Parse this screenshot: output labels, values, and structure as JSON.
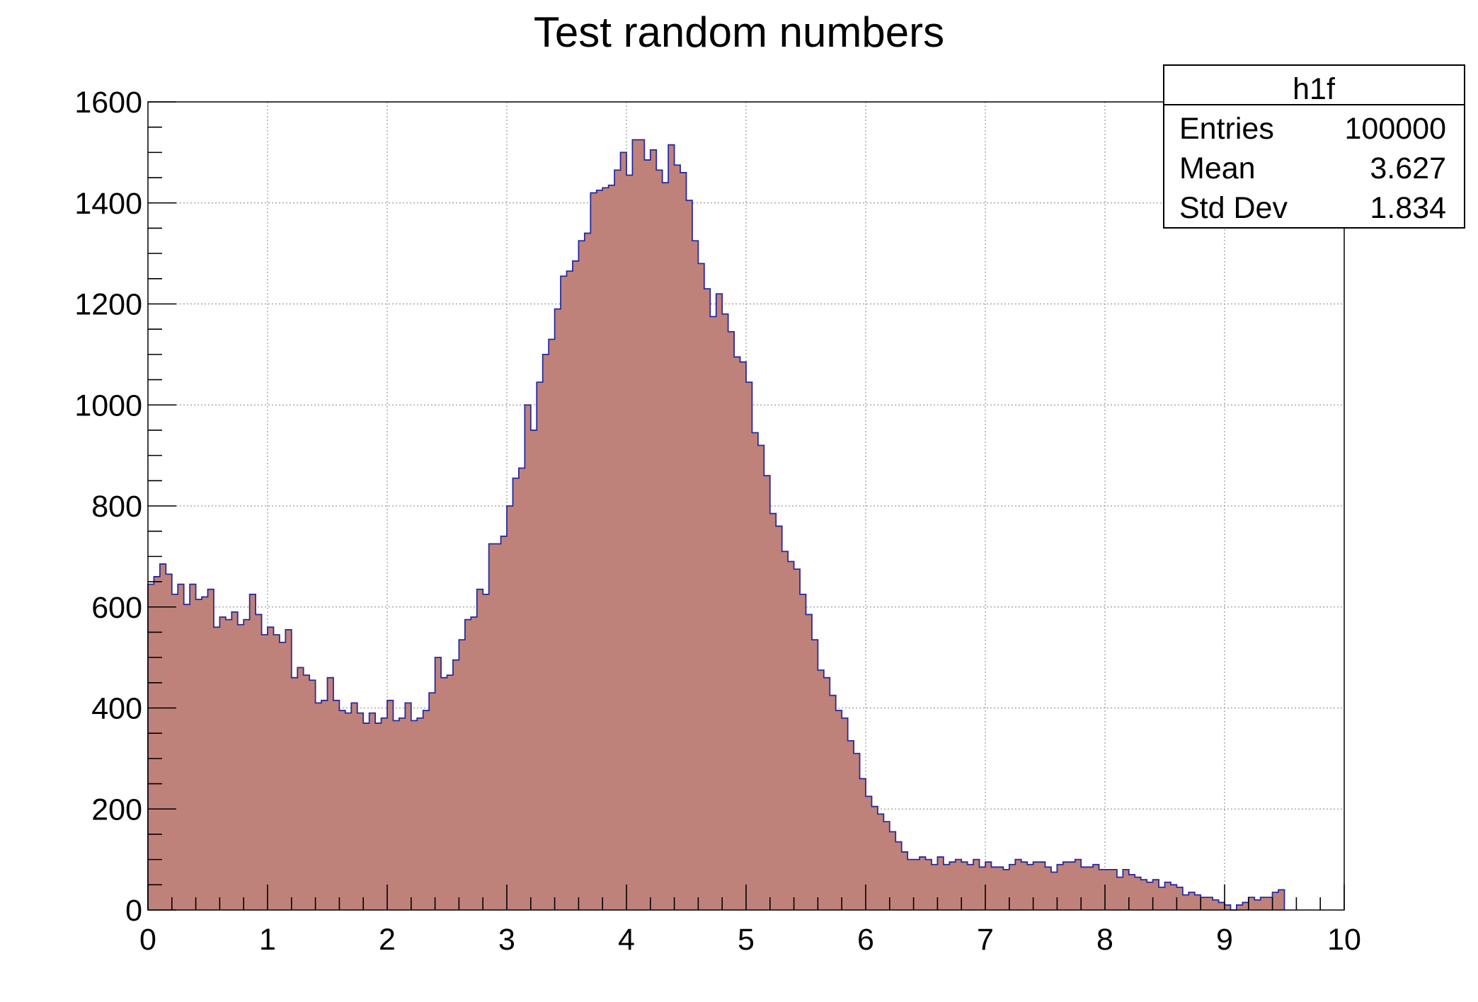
{
  "chart_data": {
    "type": "bar",
    "title": "Test random numbers",
    "xlabel": "",
    "ylabel": "",
    "xlim": [
      0,
      10
    ],
    "ylim": [
      0,
      1600
    ],
    "grid": true,
    "x_ticks": [
      "0",
      "1",
      "2",
      "3",
      "4",
      "5",
      "6",
      "7",
      "8",
      "9",
      "10"
    ],
    "y_ticks": [
      "0",
      "200",
      "400",
      "600",
      "800",
      "1000",
      "1200",
      "1400",
      "1600"
    ],
    "bin_width": 0.05,
    "values": [
      645,
      660,
      685,
      665,
      625,
      645,
      605,
      645,
      615,
      620,
      635,
      560,
      580,
      575,
      590,
      565,
      575,
      625,
      585,
      545,
      560,
      545,
      530,
      555,
      460,
      480,
      465,
      455,
      410,
      415,
      460,
      415,
      395,
      390,
      410,
      390,
      370,
      390,
      370,
      380,
      415,
      375,
      380,
      410,
      375,
      380,
      395,
      430,
      500,
      460,
      465,
      495,
      535,
      575,
      580,
      635,
      625,
      725,
      725,
      740,
      800,
      855,
      875,
      1000,
      950,
      1045,
      1100,
      1130,
      1190,
      1255,
      1265,
      1285,
      1325,
      1340,
      1420,
      1425,
      1430,
      1435,
      1465,
      1500,
      1455,
      1525,
      1525,
      1485,
      1505,
      1465,
      1440,
      1515,
      1475,
      1460,
      1405,
      1325,
      1280,
      1230,
      1175,
      1220,
      1180,
      1145,
      1095,
      1085,
      1045,
      945,
      920,
      860,
      785,
      760,
      710,
      690,
      675,
      625,
      585,
      535,
      475,
      460,
      425,
      395,
      380,
      335,
      310,
      260,
      225,
      205,
      190,
      175,
      155,
      135,
      115,
      100,
      100,
      105,
      100,
      90,
      105,
      90,
      95,
      100,
      95,
      90,
      100,
      85,
      95,
      85,
      85,
      80,
      90,
      100,
      95,
      90,
      95,
      95,
      85,
      75,
      90,
      95,
      95,
      100,
      85,
      85,
      90,
      80,
      80,
      80,
      65,
      80,
      70,
      65,
      60,
      55,
      60,
      45,
      55,
      50,
      45,
      30,
      35,
      30,
      25,
      25,
      20,
      15,
      10,
      0,
      10,
      15,
      25,
      20,
      25,
      25,
      35,
      40
    ],
    "legend": "top-right",
    "stats_box": {
      "name": "h1f",
      "rows": [
        {
          "label": "Entries",
          "value": "100000"
        },
        {
          "label": "Mean",
          "value": "3.627"
        },
        {
          "label": "Std Dev",
          "value": "1.834"
        }
      ]
    },
    "colors": {
      "fill": "#bf827a",
      "line": "#2a2a9a",
      "grid": "#9a9a9a",
      "axis": "#000000"
    }
  }
}
